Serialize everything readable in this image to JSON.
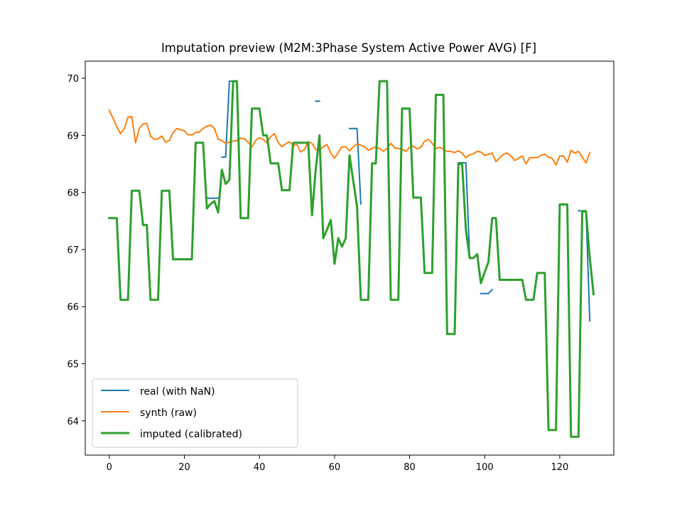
{
  "chart_data": {
    "type": "line",
    "title": "Imputation preview (M2M:3Phase System Active Power AVG)  [F]",
    "xlabel": "",
    "ylabel": "",
    "xlim": [
      -6.4,
      134.4
    ],
    "ylim": [
      63.4,
      70.3
    ],
    "xticks": [
      0,
      20,
      40,
      60,
      80,
      100,
      120
    ],
    "yticks": [
      64,
      65,
      66,
      67,
      68,
      69,
      70
    ],
    "grid": false,
    "legend_position": "lower-left",
    "series": [
      {
        "name": "real (with NaN)",
        "color": "#1f77b4",
        "width": 2,
        "points": [
          [
            26,
            67.9
          ],
          [
            29,
            67.9
          ],
          null,
          [
            30,
            68.62
          ],
          [
            31,
            68.62
          ],
          [
            32,
            69.95
          ],
          [
            33,
            69.95
          ],
          null,
          [
            55,
            69.6
          ],
          [
            56,
            69.6
          ],
          null,
          [
            64,
            69.12
          ],
          [
            66,
            69.12
          ],
          [
            67,
            67.8
          ],
          null,
          [
            93,
            68.52
          ],
          [
            95,
            68.52
          ],
          [
            96,
            66.85
          ],
          [
            97,
            66.85
          ],
          null,
          [
            99,
            66.23
          ],
          [
            101,
            66.23
          ],
          [
            102,
            66.3
          ],
          null,
          [
            125,
            67.68
          ],
          [
            127,
            67.68
          ],
          [
            128,
            65.75
          ]
        ]
      },
      {
        "name": "synth (raw)",
        "color": "#ff7f0e",
        "width": 2,
        "values": [
          69.44,
          69.3,
          69.15,
          69.03,
          69.12,
          69.32,
          69.33,
          68.87,
          69.12,
          69.2,
          69.21,
          68.99,
          68.93,
          68.94,
          68.99,
          68.88,
          68.91,
          69.05,
          69.12,
          69.1,
          69.08,
          69.01,
          69.01,
          69.05,
          69.06,
          69.12,
          69.16,
          69.18,
          69.12,
          68.93,
          68.91,
          68.86,
          68.88,
          68.9,
          68.91,
          68.95,
          68.94,
          68.88,
          68.8,
          68.91,
          68.96,
          68.93,
          68.87,
          68.98,
          69.03,
          68.87,
          68.8,
          68.85,
          68.89,
          68.82,
          68.84,
          68.71,
          68.75,
          68.89,
          68.86,
          68.75,
          68.74,
          68.8,
          68.84,
          68.69,
          68.6,
          68.7,
          68.8,
          68.8,
          68.73,
          68.8,
          68.85,
          68.83,
          68.8,
          68.74,
          68.77,
          68.8,
          68.77,
          68.72,
          68.77,
          68.86,
          68.78,
          68.77,
          68.76,
          68.72,
          68.79,
          68.81,
          68.76,
          68.79,
          68.9,
          68.93,
          68.86,
          68.77,
          68.79,
          68.76,
          68.72,
          68.72,
          68.7,
          68.73,
          68.69,
          68.61,
          68.66,
          68.68,
          68.72,
          68.71,
          68.65,
          68.67,
          68.69,
          68.54,
          68.61,
          68.67,
          68.69,
          68.64,
          68.56,
          68.6,
          68.64,
          68.5,
          68.61,
          68.61,
          68.61,
          68.65,
          68.67,
          68.62,
          68.6,
          68.48,
          68.64,
          68.64,
          68.53,
          68.74,
          68.69,
          68.72,
          68.62,
          68.52,
          68.7
        ]
      },
      {
        "name": "imputed (calibrated)",
        "color": "#2ca02c",
        "width": 3,
        "values": [
          67.55,
          67.55,
          67.55,
          66.12,
          66.12,
          66.12,
          68.03,
          68.03,
          68.03,
          67.43,
          67.43,
          66.12,
          66.12,
          66.12,
          68.03,
          68.03,
          68.03,
          66.83,
          66.83,
          66.83,
          66.83,
          66.83,
          66.83,
          68.87,
          68.87,
          68.87,
          67.72,
          67.8,
          67.85,
          67.65,
          68.4,
          68.15,
          68.22,
          69.95,
          69.95,
          67.55,
          67.55,
          67.55,
          69.47,
          69.47,
          69.47,
          69.0,
          69.0,
          68.51,
          68.51,
          68.51,
          68.04,
          68.04,
          68.04,
          68.87,
          68.87,
          68.87,
          68.87,
          68.87,
          67.6,
          68.4,
          69.0,
          67.2,
          67.35,
          67.52,
          66.75,
          67.2,
          67.05,
          67.2,
          68.65,
          68.2,
          67.75,
          66.12,
          66.12,
          66.12,
          68.51,
          68.51,
          69.95,
          69.95,
          69.95,
          66.12,
          66.12,
          66.12,
          69.47,
          69.47,
          69.47,
          67.91,
          67.91,
          67.91,
          66.59,
          66.59,
          66.59,
          69.71,
          69.71,
          69.71,
          65.52,
          65.52,
          65.52,
          68.5,
          68.5,
          67.35,
          66.85,
          66.85,
          66.92,
          66.41,
          66.6,
          66.78,
          67.55,
          67.55,
          66.47,
          66.47,
          66.47,
          66.47,
          66.47,
          66.47,
          66.47,
          66.12,
          66.12,
          66.12,
          66.59,
          66.59,
          66.59,
          63.84,
          63.84,
          63.84,
          67.79,
          67.79,
          67.79,
          63.72,
          63.72,
          63.72,
          67.67,
          67.67,
          66.85,
          66.22
        ]
      }
    ]
  }
}
